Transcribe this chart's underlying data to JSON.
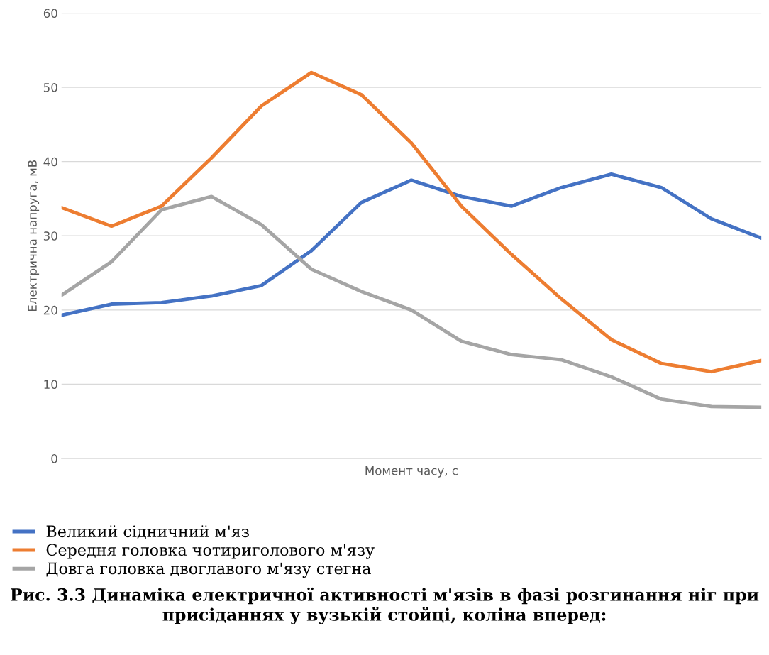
{
  "chart_data": {
    "type": "line",
    "xlabel": "Момент часу, с",
    "ylabel": "Електрична напруга, мВ",
    "categories": [
      null,
      null,
      null,
      null,
      null,
      null,
      null,
      null,
      null,
      null,
      null,
      null,
      null,
      null,
      null
    ],
    "series": [
      {
        "name": "Великий сідничний м'яз",
        "color": "#4472c4",
        "values": [
          19.3,
          20.8,
          21.0,
          21.9,
          23.3,
          28.0,
          34.5,
          37.5,
          35.3,
          34.0,
          36.5,
          38.3,
          36.5,
          32.3,
          29.7
        ]
      },
      {
        "name": "Середня головка чотириголового м'язу",
        "color": "#ed7d31",
        "values": [
          33.8,
          31.3,
          34.0,
          40.5,
          47.5,
          52.0,
          49.0,
          42.5,
          34.0,
          27.5,
          21.5,
          16.0,
          12.8,
          11.7,
          13.2
        ]
      },
      {
        "name": "Довга головка двоглавого м'язу стегна",
        "color": "#a5a5a5",
        "values": [
          22.0,
          26.5,
          33.5,
          35.3,
          31.5,
          25.5,
          22.5,
          20.0,
          15.8,
          14.0,
          13.3,
          11.0,
          8.0,
          7.0,
          6.9
        ]
      }
    ],
    "ylim": [
      0,
      60
    ],
    "yticks": [
      0,
      10,
      20,
      30,
      40,
      50,
      60
    ],
    "grid": "y",
    "legend": "bottom",
    "line_style": "solid",
    "marker": "none",
    "annotations": [
      "Рис. 3.3 Динаміка електричної активності м'язів в фазі розгинання ніг при присіданнях у вузькій стойці, коліна вперед:"
    ]
  }
}
